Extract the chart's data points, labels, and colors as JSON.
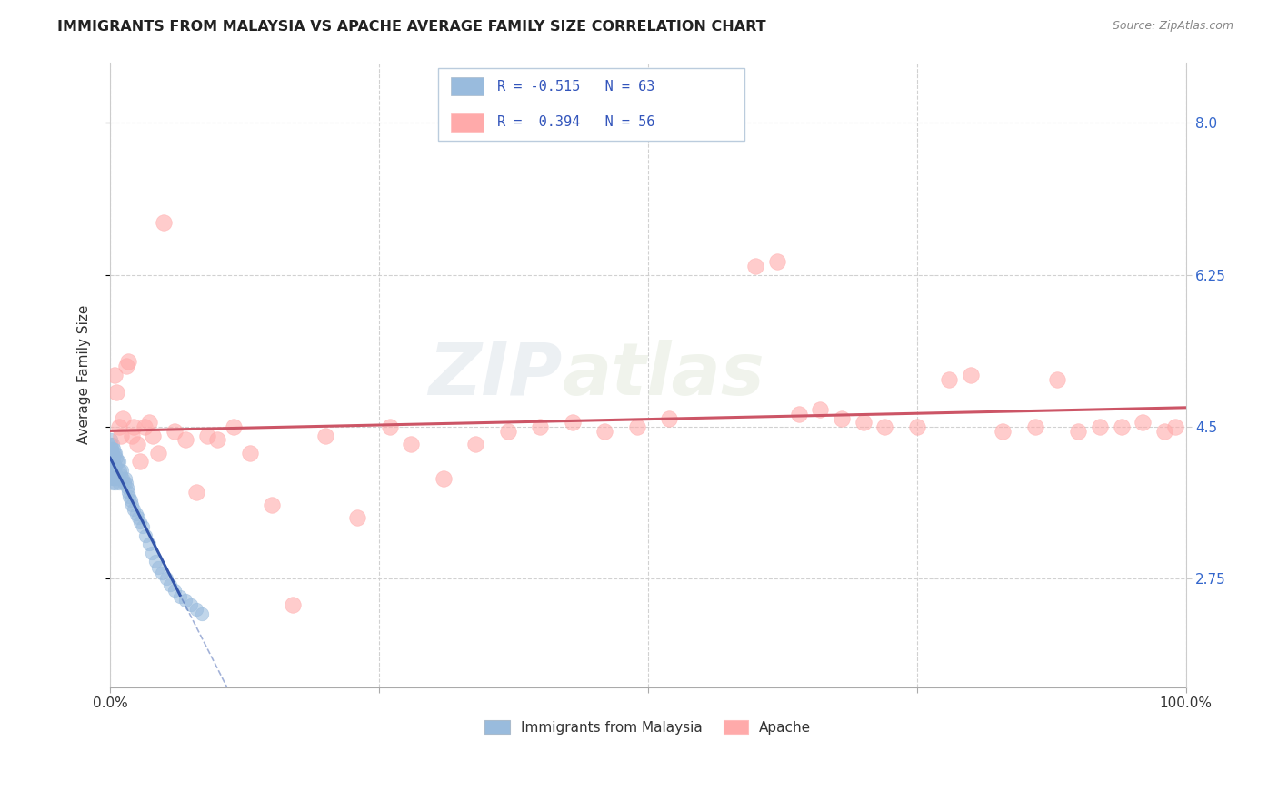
{
  "title": "IMMIGRANTS FROM MALAYSIA VS APACHE AVERAGE FAMILY SIZE CORRELATION CHART",
  "source": "Source: ZipAtlas.com",
  "ylabel": "Average Family Size",
  "xlim": [
    0,
    1.0
  ],
  "ylim": [
    1.5,
    8.7
  ],
  "yticks": [
    2.75,
    4.5,
    6.25,
    8.0
  ],
  "blue_color": "#99BBDD",
  "pink_color": "#FFAAAA",
  "trend_blue": "#3355AA",
  "trend_pink": "#CC5566",
  "watermark_zip": "ZIP",
  "watermark_atlas": "atlas",
  "legend_line1_r": "R = -0.515",
  "legend_line1_n": "N = 63",
  "legend_line2_r": "R =  0.394",
  "legend_line2_n": "N = 56",
  "blue_scatter_x": [
    0.0005,
    0.0005,
    0.001,
    0.001,
    0.001,
    0.001,
    0.001,
    0.0015,
    0.0015,
    0.0015,
    0.002,
    0.002,
    0.002,
    0.002,
    0.0025,
    0.0025,
    0.003,
    0.003,
    0.003,
    0.0035,
    0.004,
    0.004,
    0.004,
    0.005,
    0.005,
    0.005,
    0.006,
    0.006,
    0.007,
    0.007,
    0.008,
    0.008,
    0.009,
    0.01,
    0.011,
    0.012,
    0.013,
    0.014,
    0.015,
    0.016,
    0.017,
    0.018,
    0.019,
    0.02,
    0.022,
    0.024,
    0.026,
    0.028,
    0.03,
    0.033,
    0.036,
    0.039,
    0.042,
    0.045,
    0.048,
    0.052,
    0.056,
    0.06,
    0.065,
    0.07,
    0.075,
    0.08,
    0.085
  ],
  "blue_scatter_y": [
    4.3,
    4.1,
    4.35,
    4.2,
    4.1,
    4.0,
    3.9,
    4.25,
    4.1,
    3.95,
    4.3,
    4.15,
    4.0,
    3.85,
    4.2,
    4.05,
    4.25,
    4.1,
    3.9,
    4.0,
    4.2,
    4.05,
    3.9,
    4.2,
    4.05,
    3.85,
    4.15,
    3.95,
    4.1,
    3.9,
    4.1,
    3.85,
    4.0,
    3.95,
    4.0,
    3.9,
    3.85,
    3.9,
    3.85,
    3.8,
    3.75,
    3.7,
    3.65,
    3.6,
    3.55,
    3.5,
    3.45,
    3.4,
    3.35,
    3.25,
    3.15,
    3.05,
    2.95,
    2.88,
    2.82,
    2.75,
    2.68,
    2.62,
    2.55,
    2.5,
    2.45,
    2.4,
    2.35
  ],
  "pink_scatter_x": [
    0.004,
    0.006,
    0.008,
    0.01,
    0.012,
    0.015,
    0.017,
    0.02,
    0.022,
    0.025,
    0.028,
    0.032,
    0.036,
    0.04,
    0.045,
    0.05,
    0.06,
    0.07,
    0.08,
    0.09,
    0.1,
    0.115,
    0.13,
    0.15,
    0.17,
    0.2,
    0.23,
    0.26,
    0.28,
    0.31,
    0.34,
    0.37,
    0.4,
    0.43,
    0.46,
    0.49,
    0.52,
    0.6,
    0.62,
    0.64,
    0.66,
    0.68,
    0.7,
    0.72,
    0.75,
    0.78,
    0.8,
    0.83,
    0.86,
    0.88,
    0.9,
    0.92,
    0.94,
    0.96,
    0.98,
    0.99
  ],
  "pink_scatter_y": [
    5.1,
    4.9,
    4.5,
    4.4,
    4.6,
    5.2,
    5.25,
    4.4,
    4.5,
    4.3,
    4.1,
    4.5,
    4.55,
    4.4,
    4.2,
    6.85,
    4.45,
    4.35,
    3.75,
    4.4,
    4.35,
    4.5,
    4.2,
    3.6,
    2.45,
    4.4,
    3.45,
    4.5,
    4.3,
    3.9,
    4.3,
    4.45,
    4.5,
    4.55,
    4.45,
    4.5,
    4.6,
    6.35,
    6.4,
    4.65,
    4.7,
    4.6,
    4.55,
    4.5,
    4.5,
    5.05,
    5.1,
    4.45,
    4.5,
    5.05,
    4.45,
    4.5,
    4.5,
    4.55,
    4.45,
    4.5
  ]
}
